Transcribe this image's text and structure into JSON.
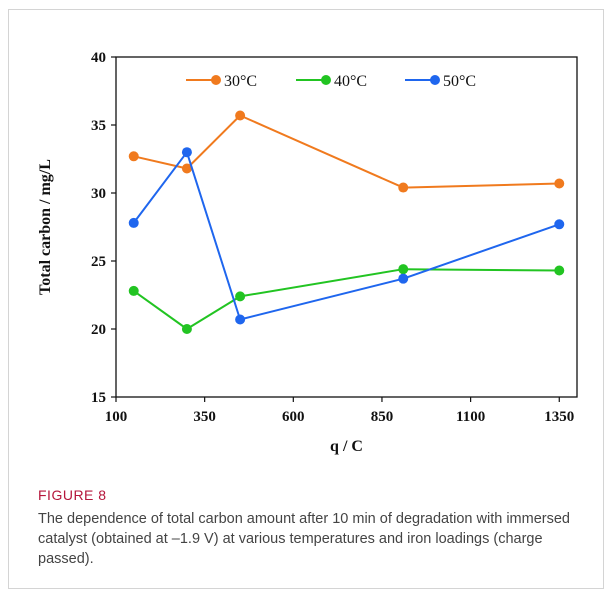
{
  "figure": {
    "label": "FIGURE 8",
    "caption": "The dependence of total carbon amount after 10 min of degradation with immersed catalyst (obtained at –1.9 V) at various temperatures and iron loadings (charge passed)."
  },
  "chart_data": {
    "type": "line",
    "title": "",
    "xlabel": "q / C",
    "ylabel": "Total carbon / mg/L",
    "xlim": [
      100,
      1400
    ],
    "ylim": [
      15,
      40
    ],
    "xticks": [
      100,
      350,
      600,
      850,
      1100,
      1350
    ],
    "yticks": [
      15,
      20,
      25,
      30,
      35,
      40
    ],
    "grid": false,
    "legend_position": "top",
    "series": [
      {
        "name": "30°C",
        "color": "#f07a1e",
        "x": [
          150,
          300,
          450,
          910,
          1350
        ],
        "y": [
          32.7,
          31.8,
          35.7,
          30.4,
          30.7
        ]
      },
      {
        "name": "40°C",
        "color": "#22c422",
        "x": [
          150,
          300,
          450,
          910,
          1350
        ],
        "y": [
          22.8,
          20.0,
          22.4,
          24.4,
          24.3
        ]
      },
      {
        "name": "50°C",
        "color": "#1f66ee",
        "x": [
          150,
          300,
          450,
          910,
          1350
        ],
        "y": [
          27.8,
          33.0,
          20.7,
          23.7,
          27.7
        ]
      }
    ]
  }
}
